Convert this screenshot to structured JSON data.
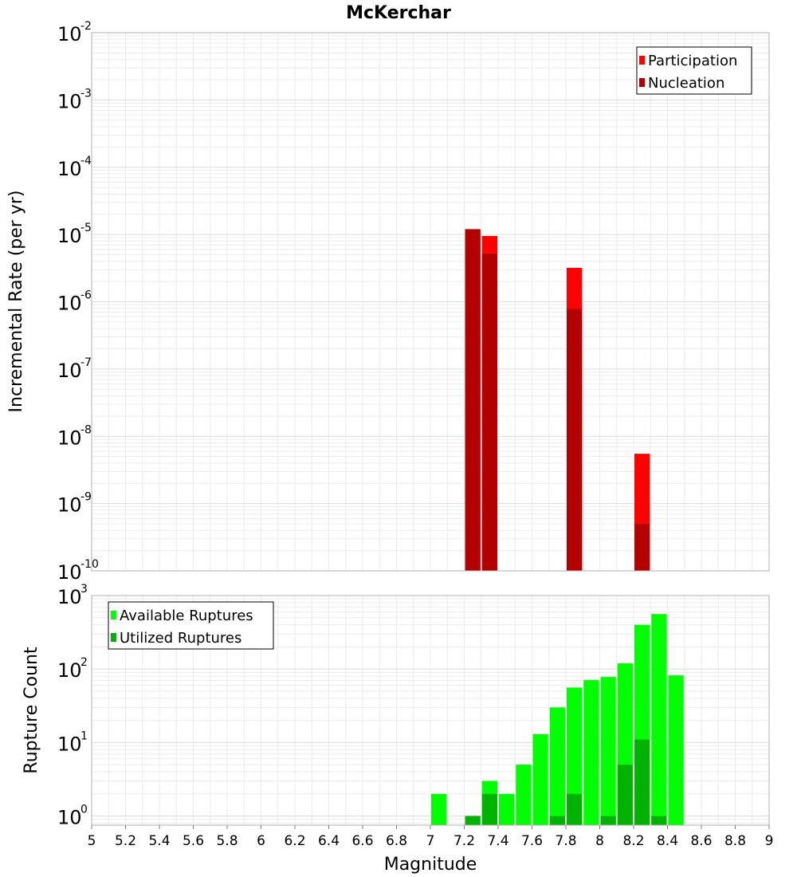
{
  "chart_data": [
    {
      "type": "bar",
      "title": "McKerchar",
      "ylabel": "Incremental Rate (per yr)",
      "yscale": "log",
      "ylim": [
        1e-10,
        0.01
      ],
      "ytick_exponents": [
        -2,
        -3,
        -4,
        -5,
        -6,
        -7,
        -8,
        -9,
        -10
      ],
      "bar_width": 0.1,
      "legend": {
        "placement": "top-right",
        "entries": [
          "Participation",
          "Nucleation"
        ]
      },
      "series": [
        {
          "name": "Participation",
          "color": "#ff0000",
          "points": [
            {
              "x": 7.25,
              "y": 1.2e-05
            },
            {
              "x": 7.35,
              "y": 9.5e-06
            },
            {
              "x": 7.85,
              "y": 3.2e-06
            },
            {
              "x": 8.25,
              "y": 5.5e-09
            }
          ]
        },
        {
          "name": "Nucleation",
          "color": "#b30000",
          "points": [
            {
              "x": 7.25,
              "y": 1.2e-05
            },
            {
              "x": 7.35,
              "y": 5.2e-06
            },
            {
              "x": 7.85,
              "y": 7.8e-07
            },
            {
              "x": 8.25,
              "y": 5e-10
            }
          ]
        }
      ],
      "grid": true
    },
    {
      "type": "bar",
      "xlabel": "Magnitude",
      "ylabel": "Rupture Count",
      "yscale": "log",
      "ylim": [
        0.75,
        1000
      ],
      "ytick_exponents": [
        3,
        2,
        1,
        0
      ],
      "xlim": [
        5,
        9
      ],
      "xticks": [
        "5",
        "5.2",
        "5.4",
        "5.6",
        "5.8",
        "6",
        "6.2",
        "6.4",
        "6.6",
        "6.8",
        "7",
        "7.2",
        "7.4",
        "7.6",
        "7.8",
        "8",
        "8.2",
        "8.4",
        "8.6",
        "8.8",
        "9"
      ],
      "bar_width": 0.1,
      "legend": {
        "placement": "top-left",
        "entries": [
          "Available Ruptures",
          "Utilized Ruptures"
        ]
      },
      "series": [
        {
          "name": "Available Ruptures",
          "color": "#00ff00",
          "points": [
            {
              "x": 7.05,
              "y": 2
            },
            {
              "x": 7.35,
              "y": 3
            },
            {
              "x": 7.45,
              "y": 2
            },
            {
              "x": 7.55,
              "y": 5
            },
            {
              "x": 7.65,
              "y": 13
            },
            {
              "x": 7.75,
              "y": 30
            },
            {
              "x": 7.85,
              "y": 56
            },
            {
              "x": 7.95,
              "y": 71
            },
            {
              "x": 8.05,
              "y": 78
            },
            {
              "x": 8.15,
              "y": 120
            },
            {
              "x": 8.25,
              "y": 400
            },
            {
              "x": 8.35,
              "y": 560
            },
            {
              "x": 8.45,
              "y": 82
            }
          ]
        },
        {
          "name": "Utilized Ruptures",
          "color": "#00b300",
          "points": [
            {
              "x": 7.25,
              "y": 1
            },
            {
              "x": 7.35,
              "y": 2
            },
            {
              "x": 7.75,
              "y": 1
            },
            {
              "x": 7.85,
              "y": 2
            },
            {
              "x": 8.05,
              "y": 1
            },
            {
              "x": 8.15,
              "y": 5
            },
            {
              "x": 8.25,
              "y": 11
            },
            {
              "x": 8.35,
              "y": 1
            }
          ]
        }
      ],
      "grid": true
    }
  ]
}
